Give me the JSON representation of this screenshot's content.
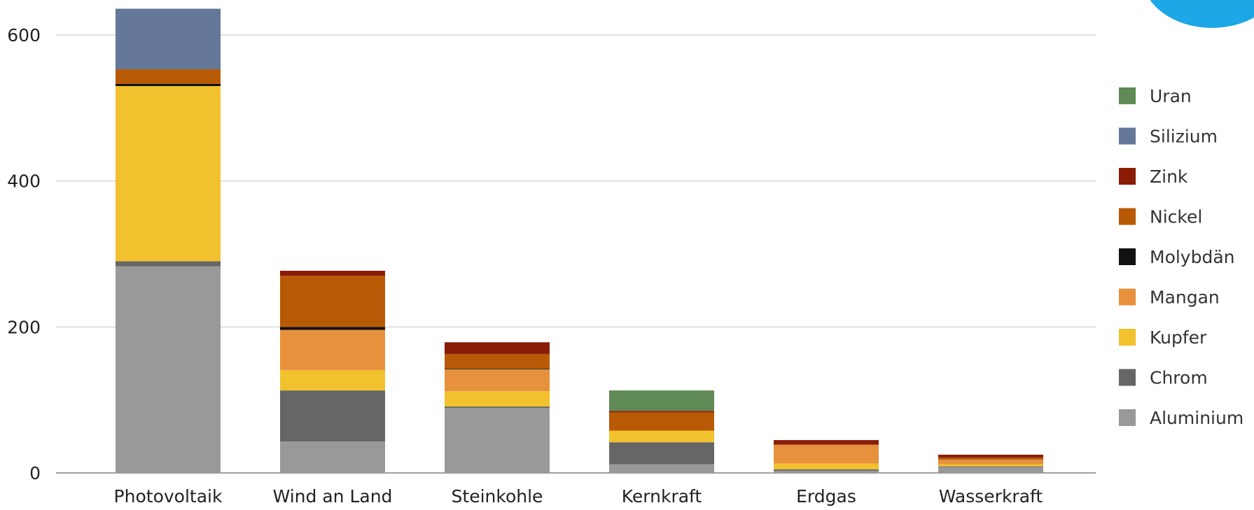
{
  "chart_data": {
    "type": "bar",
    "stacked": true,
    "categories": [
      "Photovoltaik",
      "Wind an Land",
      "Steinkohle",
      "Kernkraft",
      "Erdgas",
      "Wasserkraft"
    ],
    "ylim": [
      0,
      640
    ],
    "yticks": [
      0,
      200,
      400,
      600
    ],
    "grid": true,
    "legend_position": "right",
    "series": [
      {
        "name": "Aluminium",
        "color": "#999999",
        "values": [
          283,
          43,
          89,
          12,
          3,
          8
        ]
      },
      {
        "name": "Chrom",
        "color": "#666666",
        "values": [
          7,
          70,
          2,
          30,
          2,
          1
        ]
      },
      {
        "name": "Kupfer",
        "color": "#f2c12e",
        "values": [
          240,
          28,
          21,
          16,
          8,
          3
        ]
      },
      {
        "name": "Mangan",
        "color": "#e8913d",
        "values": [
          0,
          55,
          30,
          0,
          25,
          6
        ]
      },
      {
        "name": "Molybdän",
        "color": "#111111",
        "values": [
          3,
          4,
          1,
          0,
          0,
          0
        ]
      },
      {
        "name": "Nickel",
        "color": "#b85a05",
        "values": [
          20,
          70,
          20,
          25,
          1,
          3
        ]
      },
      {
        "name": "Zink",
        "color": "#8a1c07",
        "values": [
          0,
          7,
          16,
          2,
          6,
          4
        ]
      },
      {
        "name": "Silizium",
        "color": "#66789a",
        "values": [
          83,
          0,
          0,
          0,
          0,
          0
        ]
      },
      {
        "name": "Uran",
        "color": "#5f8a55",
        "values": [
          0,
          0,
          0,
          28,
          0,
          0
        ]
      }
    ]
  },
  "badge_color": "#1ea7e6"
}
